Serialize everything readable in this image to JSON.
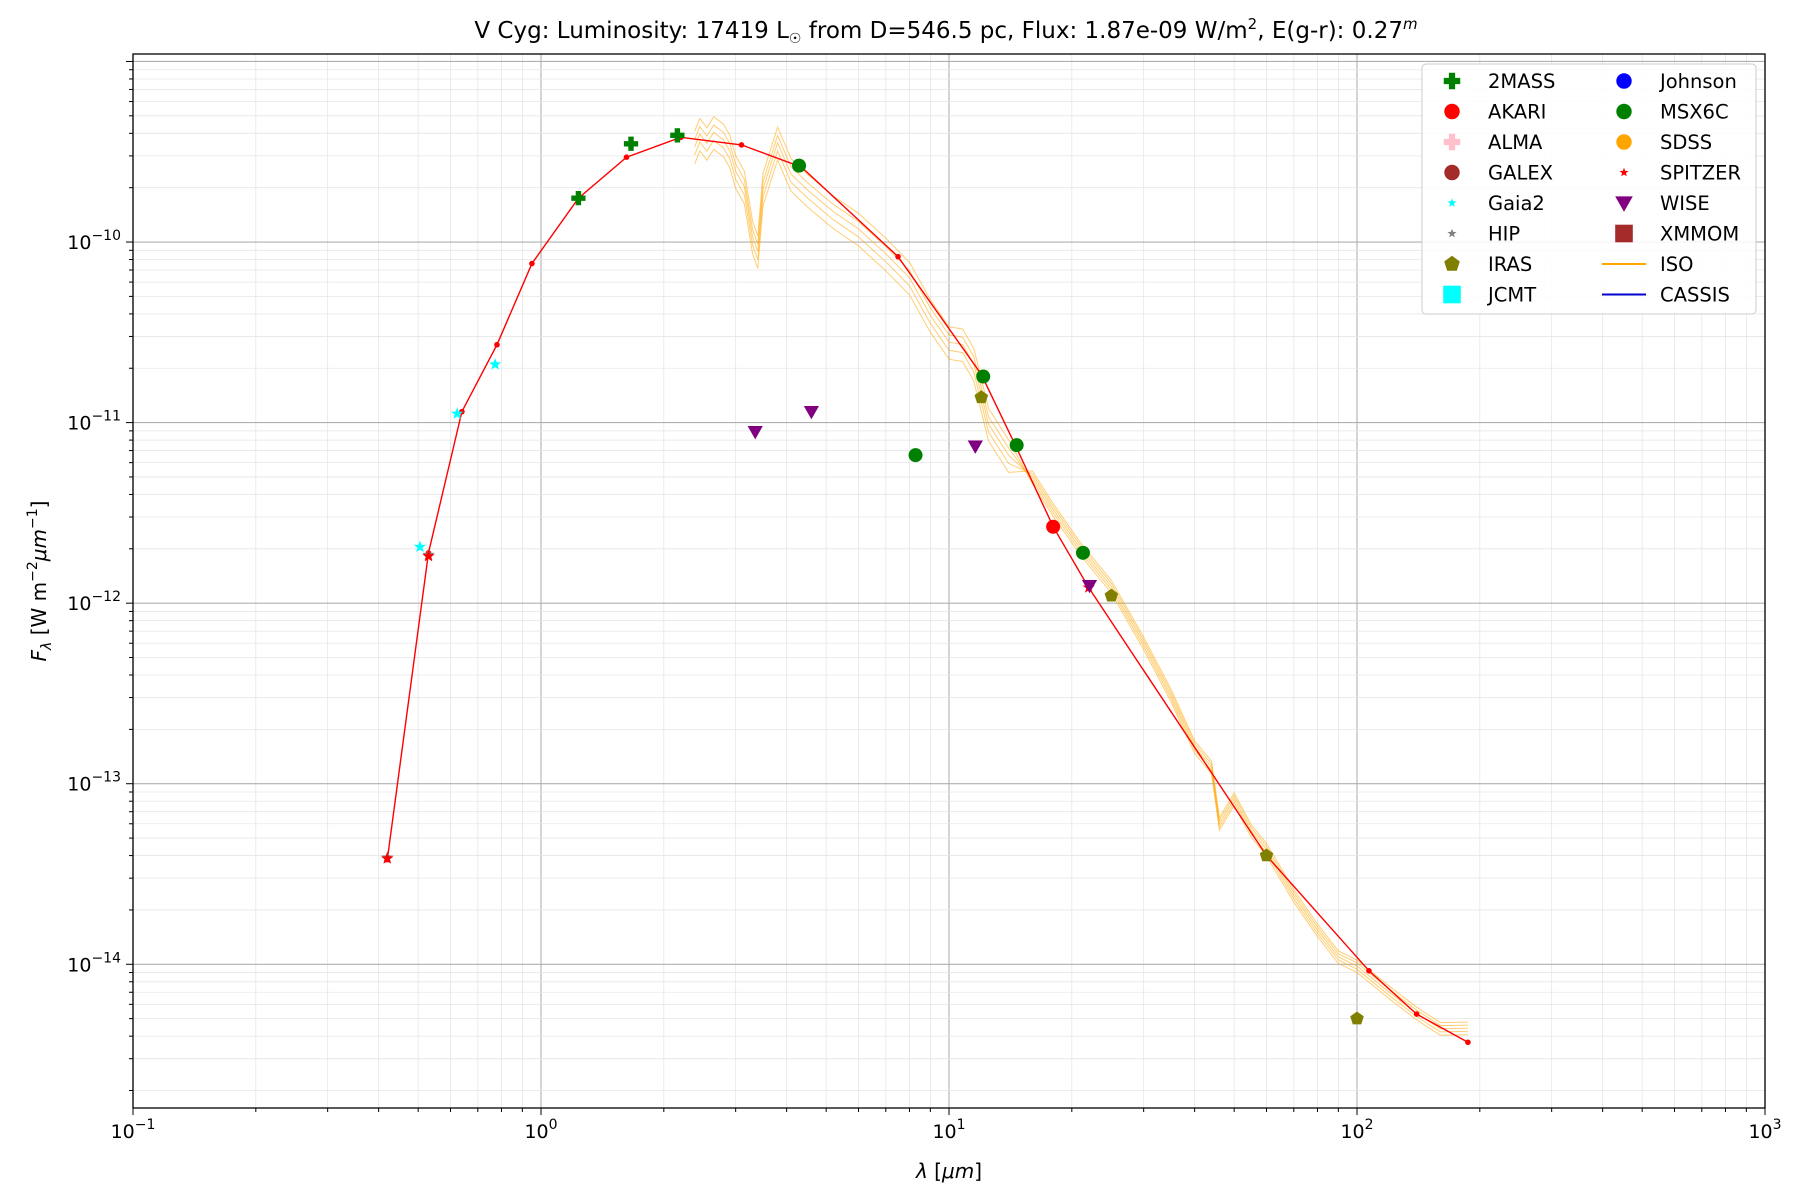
{
  "chart_data": {
    "type": "scatter",
    "title": {
      "star": "V Cyg:",
      "luminosity_label": "Luminosity:",
      "luminosity_value": "17419",
      "luminosity_unit": "L",
      "distance_text": "from D=546.5 pc,",
      "flux_label": "Flux:",
      "flux_value": "1.87e-09",
      "flux_unit_base": "W/m",
      "flux_unit_exp": "2",
      "extinction_label": "E(g-r):",
      "extinction_value": "0.27",
      "extinction_unit": "m"
    },
    "xlabel": "λ [μm]",
    "ylabel": "F_λ [W m^-2 μm^-1]",
    "x_scale": "log",
    "y_scale": "log",
    "xlim": [
      0.1,
      1000
    ],
    "ylim": [
      1.6e-15,
      1.1e-09
    ],
    "x_ticks": [
      {
        "value": 0.1,
        "mant": "10",
        "exp": "−1"
      },
      {
        "value": 1,
        "mant": "10",
        "exp": "0"
      },
      {
        "value": 10,
        "mant": "10",
        "exp": "1"
      },
      {
        "value": 100,
        "mant": "10",
        "exp": "2"
      },
      {
        "value": 1000,
        "mant": "10",
        "exp": "3"
      }
    ],
    "y_ticks": [
      {
        "value": 1e-14,
        "mant": "10",
        "exp": "−14"
      },
      {
        "value": 1e-13,
        "mant": "10",
        "exp": "−13"
      },
      {
        "value": 1e-12,
        "mant": "10",
        "exp": "−12"
      },
      {
        "value": 1e-11,
        "mant": "10",
        "exp": "−11"
      },
      {
        "value": 1e-10,
        "mant": "10",
        "exp": "−10"
      }
    ],
    "grid": "major and minor",
    "legend_position": "top-right",
    "legend_columns": 2,
    "legend": [
      {
        "name": "2MASS",
        "marker": "plus",
        "color": "#008000"
      },
      {
        "name": "AKARI",
        "marker": "circle",
        "color": "#ff0000"
      },
      {
        "name": "ALMA",
        "marker": "plus",
        "color": "#ffc0cb"
      },
      {
        "name": "GALEX",
        "marker": "circle",
        "color": "#a52a2a"
      },
      {
        "name": "Gaia2",
        "marker": "star",
        "color": "#00ffff"
      },
      {
        "name": "HIP",
        "marker": "star",
        "color": "#808080"
      },
      {
        "name": "IRAS",
        "marker": "pentagon",
        "color": "#808000"
      },
      {
        "name": "JCMT",
        "marker": "square",
        "color": "#00ffff"
      },
      {
        "name": "Johnson",
        "marker": "circle",
        "color": "#0000ff"
      },
      {
        "name": "MSX6C",
        "marker": "circle",
        "color": "#008000"
      },
      {
        "name": "SDSS",
        "marker": "circle",
        "color": "#ffa500"
      },
      {
        "name": "SPITZER",
        "marker": "star",
        "color": "#ff0000"
      },
      {
        "name": "WISE",
        "marker": "triangle-down",
        "color": "#800080"
      },
      {
        "name": "XMMOM",
        "marker": "square",
        "color": "#a52a2a"
      },
      {
        "name": "ISO",
        "marker": "line",
        "color": "#ffa500"
      },
      {
        "name": "CASSIS",
        "marker": "line",
        "color": "#0000cd"
      }
    ],
    "series": [
      {
        "name": "2MASS",
        "marker": "plus",
        "color": "#008000",
        "points": [
          [
            1.235,
            1.75e-10
          ],
          [
            1.662,
            3.5e-10
          ],
          [
            2.159,
            3.9e-10
          ]
        ]
      },
      {
        "name": "AKARI",
        "marker": "circle",
        "color": "#ff0000",
        "points": [
          [
            18.0,
            2.65e-12
          ]
        ]
      },
      {
        "name": "Gaia2",
        "marker": "star",
        "color": "#00ffff",
        "points": [
          [
            0.505,
            2.05e-12
          ],
          [
            0.623,
            1.12e-11
          ],
          [
            0.772,
            2.1e-11
          ]
        ]
      },
      {
        "name": "HIP",
        "marker": "star",
        "color": "#808080",
        "points": [
          [
            0.42,
            3.9e-14
          ],
          [
            0.53,
            1.85e-12
          ]
        ]
      },
      {
        "name": "SPITZER",
        "marker": "star",
        "color": "#ff0000",
        "points": [
          [
            0.42,
            3.85e-14
          ],
          [
            0.53,
            1.82e-12
          ],
          [
            22.0,
            1.22e-12
          ]
        ]
      },
      {
        "name": "MSX6C",
        "marker": "circle",
        "color": "#008000",
        "points": [
          [
            4.29,
            2.65e-10
          ],
          [
            8.28,
            6.6e-12
          ],
          [
            12.13,
            1.8e-11
          ],
          [
            14.65,
            7.5e-12
          ],
          [
            21.3,
            1.9e-12
          ]
        ]
      },
      {
        "name": "WISE",
        "marker": "triangle-down",
        "color": "#800080",
        "points": [
          [
            3.35,
            8.9e-12
          ],
          [
            4.6,
            1.15e-11
          ],
          [
            11.6,
            7.4e-12
          ],
          [
            22.1,
            1.25e-12
          ]
        ]
      },
      {
        "name": "IRAS",
        "marker": "pentagon",
        "color": "#808000",
        "points": [
          [
            12.0,
            1.38e-11
          ],
          [
            25.0,
            1.1e-12
          ],
          [
            60.0,
            4e-14
          ],
          [
            100.0,
            5e-15
          ]
        ]
      }
    ],
    "model_fit": {
      "color": "#ff0000",
      "points": [
        [
          0.42,
          3.8e-14
        ],
        [
          0.53,
          1.9e-12
        ],
        [
          0.64,
          1.15e-11
        ],
        [
          0.78,
          2.7e-11
        ],
        [
          0.95,
          7.6e-11
        ],
        [
          1.235,
          1.75e-10
        ],
        [
          1.62,
          2.95e-10
        ],
        [
          2.2,
          3.8e-10
        ],
        [
          3.1,
          3.45e-10
        ],
        [
          4.35,
          2.6e-10
        ],
        [
          7.5,
          8.3e-11
        ],
        [
          12.0,
          1.85e-11
        ],
        [
          14.5,
          7.6e-12
        ],
        [
          18.0,
          2.65e-12
        ],
        [
          22.0,
          1.22e-12
        ],
        [
          60.0,
          4e-14
        ],
        [
          107.0,
          9.2e-15
        ],
        [
          140.0,
          5.3e-15
        ],
        [
          187.0,
          3.7e-15
        ]
      ]
    },
    "iso_spectrum": {
      "name": "ISO",
      "color": "#ffa500",
      "points": [
        [
          2.38,
          4.1e-10
        ],
        [
          2.45,
          4.7e-10
        ],
        [
          2.55,
          4.3e-10
        ],
        [
          2.65,
          4.8e-10
        ],
        [
          2.8,
          4.5e-10
        ],
        [
          2.9,
          3.8e-10
        ],
        [
          3.0,
          3e-10
        ],
        [
          3.15,
          2.4e-10
        ],
        [
          3.3,
          1.3e-10
        ],
        [
          3.4,
          1.05e-10
        ],
        [
          3.5,
          2.4e-10
        ],
        [
          3.8,
          4.2e-10
        ],
        [
          4.1,
          2.9e-10
        ],
        [
          4.5,
          2.3e-10
        ],
        [
          5.2,
          1.8e-10
        ],
        [
          6.0,
          1.4e-10
        ],
        [
          7.0,
          1.05e-10
        ],
        [
          8.0,
          7.5e-11
        ],
        [
          9.0,
          4.8e-11
        ],
        [
          10.0,
          3.3e-11
        ],
        [
          10.8,
          3.3e-11
        ],
        [
          11.5,
          2.5e-11
        ],
        [
          12.5,
          1.2e-11
        ],
        [
          14.0,
          7.8e-12
        ],
        [
          16.0,
          5e-12
        ],
        [
          18.0,
          3.2e-12
        ],
        [
          21.0,
          2e-12
        ],
        [
          25.0,
          1.2e-12
        ],
        [
          30.0,
          6e-13
        ],
        [
          35.0,
          3e-13
        ],
        [
          40.0,
          1.6e-13
        ],
        [
          44.0,
          1.2e-13
        ],
        [
          46.0,
          6e-14
        ],
        [
          50.0,
          8e-14
        ],
        [
          55.0,
          5.5e-14
        ],
        [
          60.0,
          4.2e-14
        ],
        [
          70.0,
          2.4e-14
        ],
        [
          80.0,
          1.5e-14
        ],
        [
          90.0,
          1.1e-14
        ],
        [
          100.0,
          9.5e-15
        ],
        [
          120.0,
          7e-15
        ],
        [
          140.0,
          5.2e-15
        ],
        [
          160.0,
          4.4e-15
        ],
        [
          187.0,
          4.3e-15
        ]
      ]
    }
  }
}
